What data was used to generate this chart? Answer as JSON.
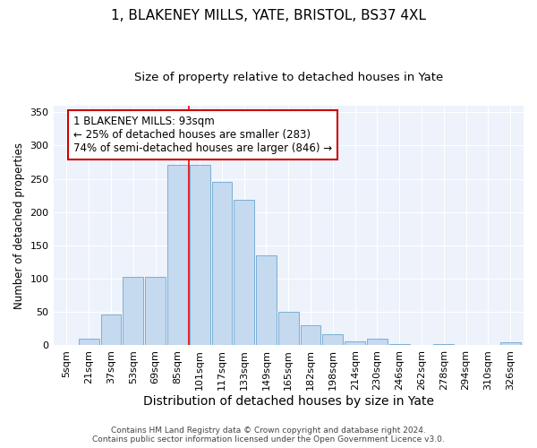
{
  "title": "1, BLAKENEY MILLS, YATE, BRISTOL, BS37 4XL",
  "subtitle": "Size of property relative to detached houses in Yate",
  "xlabel": "Distribution of detached houses by size in Yate",
  "ylabel": "Number of detached properties",
  "categories": [
    "5sqm",
    "21sqm",
    "37sqm",
    "53sqm",
    "69sqm",
    "85sqm",
    "101sqm",
    "117sqm",
    "133sqm",
    "149sqm",
    "165sqm",
    "182sqm",
    "198sqm",
    "214sqm",
    "230sqm",
    "246sqm",
    "262sqm",
    "278sqm",
    "294sqm",
    "310sqm",
    "326sqm"
  ],
  "bar_values": [
    0,
    10,
    46,
    103,
    103,
    271,
    271,
    245,
    219,
    135,
    50,
    30,
    17,
    6,
    10,
    2,
    0,
    2,
    0,
    0,
    4
  ],
  "bar_color": "#c5d9ef",
  "bar_edge_color": "#7bafd4",
  "background_color": "#edf2fb",
  "grid_color": "#ffffff",
  "annotation_line1": "1 BLAKENEY MILLS: 93sqm",
  "annotation_line2": "← 25% of detached houses are smaller (283)",
  "annotation_line3": "74% of semi-detached houses are larger (846) →",
  "annotation_box_color": "#cc0000",
  "property_line_idx": 5.5,
  "ylim": [
    0,
    360
  ],
  "yticks": [
    0,
    50,
    100,
    150,
    200,
    250,
    300,
    350
  ],
  "footer_line1": "Contains HM Land Registry data © Crown copyright and database right 2024.",
  "footer_line2": "Contains public sector information licensed under the Open Government Licence v3.0.",
  "title_fontsize": 11,
  "subtitle_fontsize": 9.5,
  "xlabel_fontsize": 10,
  "ylabel_fontsize": 8.5,
  "tick_fontsize": 8,
  "annotation_fontsize": 8.5,
  "footer_fontsize": 6.5
}
